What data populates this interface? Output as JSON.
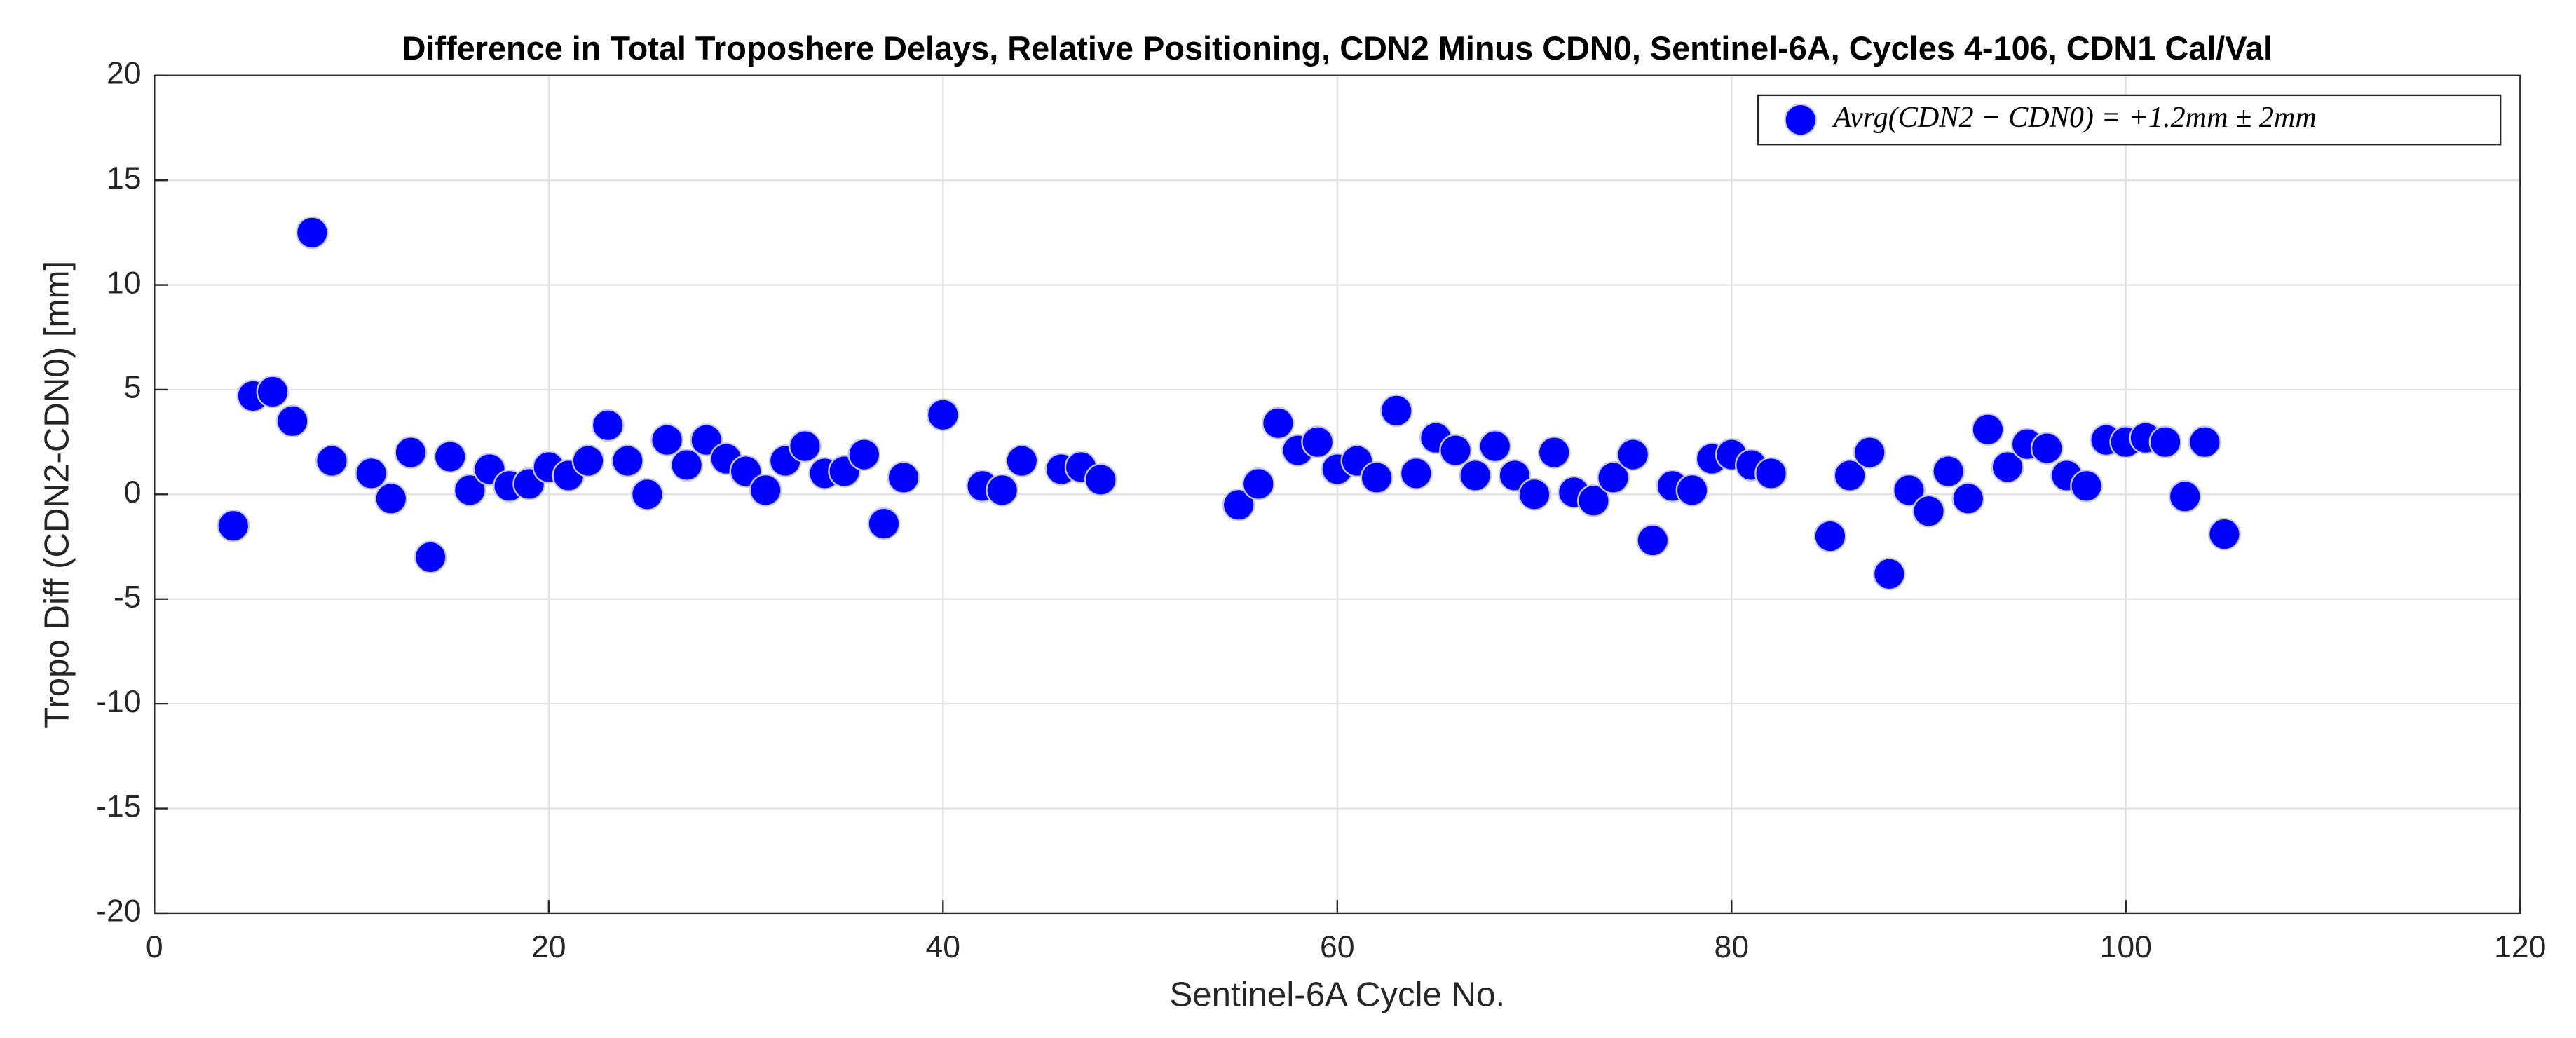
{
  "chart_data": {
    "type": "scatter",
    "title": "Difference in Total Troposhere Delays, Relative Positioning, CDN2 Minus CDN0, Sentinel-6A, Cycles 4-106, CDN1 Cal/Val",
    "x_label": "Sentinel-6A Cycle No.",
    "y_label": "Tropo Diff (CDN2-CDN0) [mm]",
    "xlim": [
      0,
      120
    ],
    "xticks": [
      0,
      20,
      40,
      60,
      80,
      100,
      120
    ],
    "ylim": [
      -20,
      20
    ],
    "yticks": [
      -20,
      -15,
      -10,
      -5,
      0,
      5,
      10,
      15,
      20
    ],
    "grid": true,
    "legend_position": "upper right",
    "series": [
      {
        "name": "Avrg(CDN2 − CDN0) = +1.2mm ± 2mm",
        "color": "#0000ff",
        "x": [
          4,
          5,
          6,
          7,
          8,
          9,
          11,
          12,
          13,
          14,
          15,
          16,
          17,
          18,
          19,
          20,
          21,
          22,
          23,
          24,
          25,
          26,
          27,
          28,
          29,
          30,
          31,
          32,
          33,
          34,
          35,
          36,
          37,
          38,
          40,
          42,
          43,
          44,
          46,
          47,
          48,
          55,
          56,
          57,
          58,
          59,
          60,
          61,
          62,
          63,
          64,
          65,
          66,
          67,
          68,
          69,
          70,
          71,
          72,
          73,
          74,
          75,
          76,
          77,
          78,
          79,
          80,
          81,
          82,
          85,
          86,
          87,
          88,
          89,
          90,
          91,
          92,
          93,
          94,
          95,
          96,
          97,
          98,
          99,
          100,
          101,
          102,
          103,
          104,
          105
        ],
        "values": [
          -1.5,
          4.7,
          4.9,
          3.5,
          12.5,
          1.6,
          1.0,
          -0.2,
          2.0,
          -3.0,
          1.8,
          0.2,
          1.2,
          0.4,
          0.5,
          1.3,
          0.9,
          1.6,
          3.3,
          1.6,
          0.0,
          2.6,
          1.4,
          2.6,
          1.7,
          1.1,
          0.2,
          1.6,
          2.3,
          1.0,
          1.1,
          1.9,
          -1.4,
          0.8,
          3.8,
          0.4,
          0.2,
          1.6,
          1.2,
          1.3,
          0.7,
          -0.5,
          0.5,
          3.4,
          2.1,
          2.5,
          1.2,
          1.6,
          0.8,
          4.0,
          1.0,
          2.7,
          2.1,
          0.9,
          2.3,
          0.9,
          0.0,
          2.0,
          0.1,
          -0.3,
          0.8,
          1.9,
          -2.2,
          0.4,
          0.2,
          1.7,
          1.9,
          1.4,
          1.0,
          -2.0,
          0.9,
          2.0,
          -3.8,
          0.2,
          -0.8,
          1.1,
          -0.2,
          3.1,
          1.3,
          2.4,
          2.2,
          0.9,
          0.4,
          2.6,
          2.5,
          2.7,
          2.5,
          -0.1,
          2.5,
          -1.9
        ]
      }
    ]
  }
}
